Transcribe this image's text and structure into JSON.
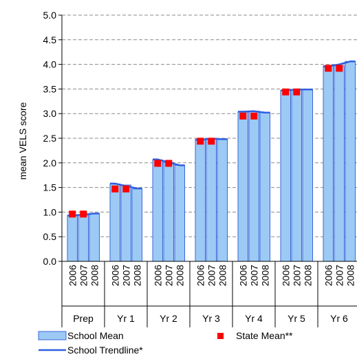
{
  "chart_data": {
    "type": "bar",
    "title": "",
    "xlabel": "",
    "ylabel": "mean VELS score",
    "ylim": [
      0,
      5
    ],
    "yticks": [
      "0.0",
      "0.5",
      "1.0",
      "1.5",
      "2.0",
      "2.5",
      "3.0",
      "3.5",
      "4.0",
      "4.5",
      "5.0"
    ],
    "grid": true,
    "groups": [
      {
        "label": "Prep",
        "years": [
          "2006",
          "2007",
          "2008"
        ],
        "school_mean": [
          0.93,
          0.94,
          0.97
        ],
        "state_mean": [
          0.96,
          0.96
        ],
        "trendline": [
          0.93,
          0.95,
          0.97
        ]
      },
      {
        "label": "Yr 1",
        "years": [
          "2006",
          "2007",
          "2008"
        ],
        "school_mean": [
          1.57,
          1.55,
          1.47
        ],
        "state_mean": [
          1.47,
          1.47
        ],
        "trendline": [
          1.58,
          1.53,
          1.48
        ]
      },
      {
        "label": "Yr 2",
        "years": [
          "2006",
          "2007",
          "2008"
        ],
        "school_mean": [
          2.06,
          2.01,
          1.95
        ],
        "state_mean": [
          1.99,
          1.99
        ],
        "trendline": [
          2.07,
          2.01,
          1.95
        ]
      },
      {
        "label": "Yr 3",
        "years": [
          "2006",
          "2007",
          "2008"
        ],
        "school_mean": [
          2.47,
          2.5,
          2.48
        ],
        "state_mean": [
          2.44,
          2.44
        ],
        "trendline": [
          2.47,
          2.49,
          2.48
        ]
      },
      {
        "label": "Yr 4",
        "years": [
          "2006",
          "2007",
          "2008"
        ],
        "school_mean": [
          3.03,
          3.05,
          3.02
        ],
        "state_mean": [
          2.95,
          2.95
        ],
        "trendline": [
          3.04,
          3.05,
          3.02
        ]
      },
      {
        "label": "Yr 5",
        "years": [
          "2006",
          "2007",
          "2008"
        ],
        "school_mean": [
          3.47,
          3.49,
          3.49
        ],
        "state_mean": [
          3.44,
          3.44
        ],
        "trendline": [
          3.47,
          3.49,
          3.49
        ]
      },
      {
        "label": "Yr 6",
        "years": [
          "2006",
          "2007",
          "2008"
        ],
        "school_mean": [
          3.97,
          3.97,
          4.06
        ],
        "state_mean": [
          3.92,
          3.92
        ],
        "trendline": [
          3.96,
          4.0,
          4.06
        ]
      }
    ],
    "legend": {
      "placement": "bottom",
      "items": [
        {
          "label": "School Mean",
          "kind": "bar"
        },
        {
          "label": "State Mean**",
          "kind": "marker"
        },
        {
          "label": "School Trendline*",
          "kind": "line"
        }
      ]
    },
    "colors": {
      "bar_fill": "#9ccaf5",
      "bar_stroke": "#3a66d8",
      "trendline": "#2f5fe0",
      "state_marker": "#ff0000",
      "grid": "#8a8a8a",
      "axis": "#000000"
    }
  }
}
